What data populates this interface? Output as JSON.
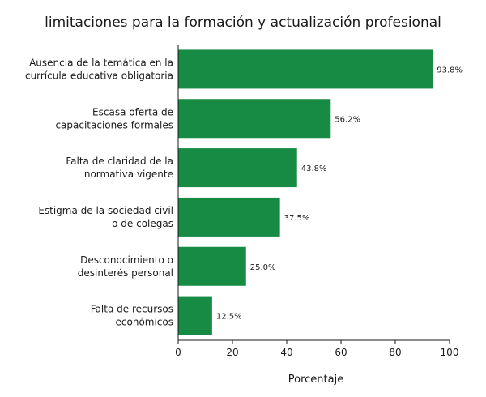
{
  "chart_data": {
    "type": "bar",
    "orientation": "horizontal",
    "title": "limitaciones para la formación y actualización profesional",
    "xlabel": "Porcentaje",
    "ylabel": "",
    "xlim": [
      0,
      100
    ],
    "xticks": [
      0,
      20,
      40,
      60,
      80,
      100
    ],
    "categories": [
      [
        "Ausencia de la temática en la",
        "currícula educativa obligatoria"
      ],
      [
        "Escasa oferta de",
        "capacitaciones formales"
      ],
      [
        "Falta de claridad de la",
        "normativa vigente"
      ],
      [
        "Estigma de la sociedad civil",
        "o de colegas"
      ],
      [
        "Desconocimiento o",
        "desinterés personal"
      ],
      [
        "Falta de recursos",
        "económicos"
      ]
    ],
    "values": [
      93.8,
      56.2,
      43.8,
      37.5,
      25.0,
      12.5
    ],
    "value_labels": [
      "93.8%",
      "56.2%",
      "43.8%",
      "37.5%",
      "25.0%",
      "12.5%"
    ],
    "bar_color": "#178a44",
    "grid": false
  }
}
